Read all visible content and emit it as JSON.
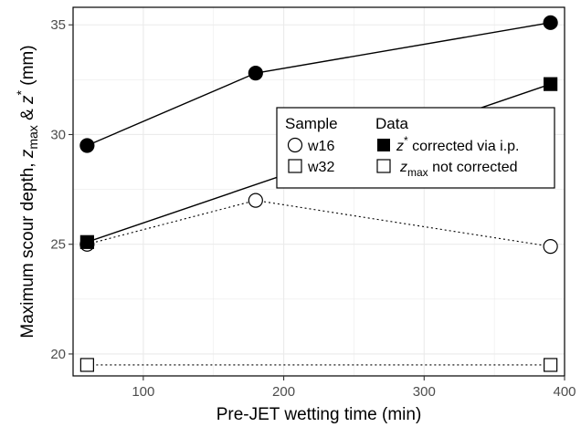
{
  "chart_data": {
    "type": "scatter",
    "xlabel": "Pre-JET wetting time (min)",
    "ylabel": {
      "prefix": "Maximum scour depth, ",
      "z1": "z",
      "sub1": "max",
      "amp": " & ",
      "z2": "z",
      "sup2": "*",
      "suffix": " (mm)"
    },
    "xlim": [
      50,
      400
    ],
    "ylim": [
      19,
      35.8
    ],
    "xticks": [
      100,
      200,
      300,
      400
    ],
    "yticks": [
      20,
      25,
      30,
      35
    ],
    "grid": true,
    "legend_placement": "right",
    "legend": {
      "sample_title": "Sample",
      "data_title": "Data",
      "samples": [
        "w16",
        "w32"
      ],
      "data_types": {
        "corrected": {
          "var": "z",
          "sup": "*",
          "text": " corrected via i.p."
        },
        "not_corrected": {
          "var": "z",
          "sub": "max",
          "text": " not corrected"
        }
      }
    },
    "series": [
      {
        "sample": "w16",
        "data": "corrected",
        "x": [
          60,
          180,
          390
        ],
        "y": [
          29.5,
          32.8,
          35.1
        ]
      },
      {
        "sample": "w32",
        "data": "corrected",
        "x": [
          60,
          390
        ],
        "y": [
          25.1,
          32.3
        ]
      },
      {
        "sample": "w16",
        "data": "not_corrected",
        "x": [
          60,
          180,
          390
        ],
        "y": [
          25.0,
          27.0,
          24.9
        ]
      },
      {
        "sample": "w32",
        "data": "not_corrected",
        "x": [
          60,
          390
        ],
        "y": [
          19.5,
          19.5
        ]
      }
    ],
    "colors": {
      "ink": "#000000",
      "grid": "#ebebeb",
      "tick": "#4d4d4d",
      "fill_open": "#ffffff"
    }
  }
}
